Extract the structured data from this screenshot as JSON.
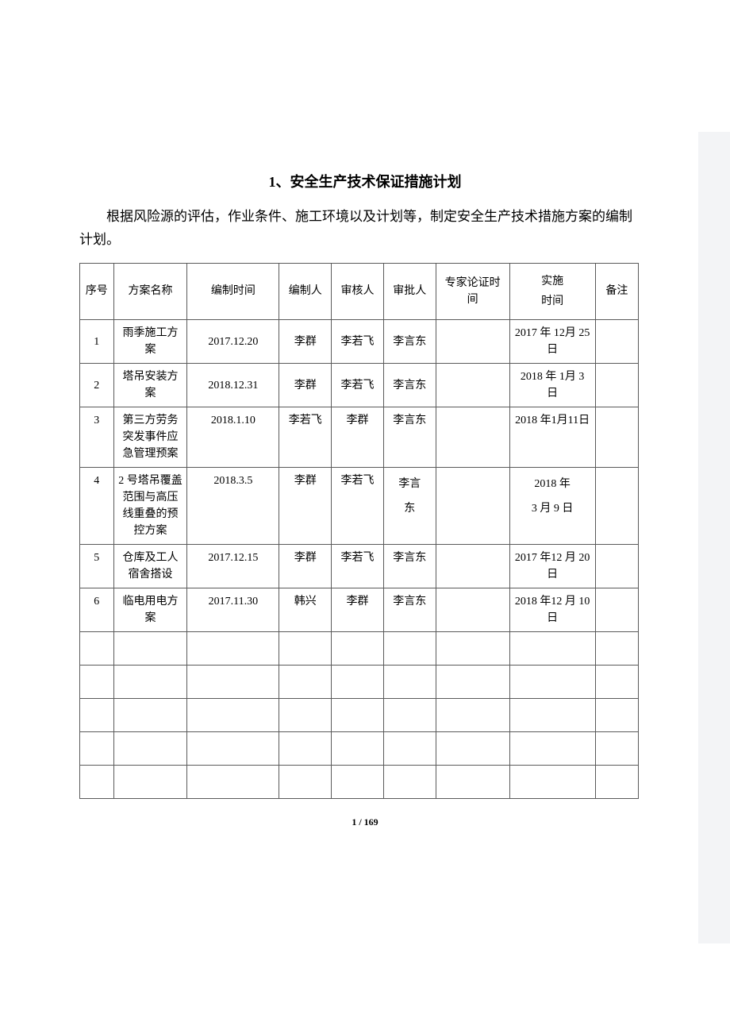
{
  "title": "1、安全生产技术保证措施计划",
  "intro": "根据风险源的评估，作业条件、施工环境以及计划等，制定安全生产技术措施方案的编制计划。",
  "pageNumber": "1 / 169",
  "table": {
    "headers": [
      "序号",
      "方案名称",
      "编制时间",
      "编制人",
      "审核人",
      "审批人",
      "专家论证时间",
      "实施\n时间",
      "备注"
    ],
    "rows": [
      {
        "no": "1",
        "name": "雨季施工方案",
        "date": "2017.12.20",
        "author": "李群",
        "reviewer": "李若飞",
        "approver": "李言东",
        "expert": "",
        "impl": "2017 年 12月 25 日",
        "remark": ""
      },
      {
        "no": "2",
        "name": "塔吊安装方案",
        "date": "2018.12.31",
        "author": "李群",
        "reviewer": "李若飞",
        "approver": "李言东",
        "expert": "",
        "impl": "2018 年 1月 3 日",
        "remark": ""
      },
      {
        "no": "3",
        "name": "第三方劳务突发事件应急管理预案",
        "date": "2018.1.10",
        "author": "李若飞",
        "reviewer": "李群",
        "approver": "李言东",
        "expert": "",
        "impl": "2018 年1月11日",
        "remark": ""
      },
      {
        "no": "4",
        "name": "2 号塔吊覆盖范围与高压线重叠的预控方案",
        "date": "2018.3.5",
        "author": "李群",
        "reviewer": "李若飞",
        "approver": "李言\n东",
        "expert": "",
        "impl": "2018 年\n3 月 9 日",
        "remark": ""
      },
      {
        "no": "5",
        "name": "仓库及工人宿舍搭设",
        "date": "2017.12.15",
        "author": "李群",
        "reviewer": "李若飞",
        "approver": "李言东",
        "expert": "",
        "impl": "2017 年12 月 20日",
        "remark": ""
      },
      {
        "no": "6",
        "name": "临电用电方案",
        "date": "2017.11.30",
        "author": "韩兴",
        "reviewer": "李群",
        "approver": "李言东",
        "expert": "",
        "impl": "2018 年12 月 10日",
        "remark": ""
      }
    ],
    "emptyRows": 5
  },
  "styling": {
    "pageWidth": 920,
    "pageHeight": 1302,
    "contentWidth": 780,
    "borderColor": "#5a5a5a",
    "backgroundColor": "#ffffff",
    "sidebarColor": "#f3f4f6",
    "titleFontSize": 18,
    "introFontSize": 17,
    "tableFontSize": 14,
    "fontFamily": "SimSun",
    "columnWidths": [
      "5.5%",
      "12%",
      "15%",
      "8.5%",
      "8.5%",
      "8.5%",
      "12%",
      "14%",
      "7%"
    ]
  }
}
